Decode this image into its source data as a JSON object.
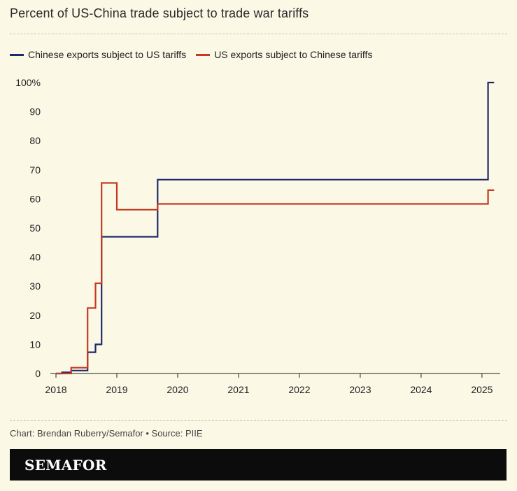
{
  "title": "Percent of US-China trade subject to trade war tariffs",
  "credit": "Chart: Brendan Ruberry/Semafor • Source: PIIE",
  "brand": {
    "logo_text": "SEMAFOR"
  },
  "colors": {
    "background": "#fbf8e6",
    "us_tariffs": "#1f2a6b",
    "china_tariffs": "#c53a25"
  },
  "chart_data": {
    "type": "line",
    "step": true,
    "xlim": [
      2018.0,
      2025.3
    ],
    "ylim": [
      0,
      100
    ],
    "x_ticks": [
      2018,
      2019,
      2020,
      2021,
      2022,
      2023,
      2024,
      2025
    ],
    "x_tick_labels": [
      "2018",
      "2019",
      "2020",
      "2021",
      "2022",
      "2023",
      "2024",
      "2025"
    ],
    "y_ticks": [
      0,
      10,
      20,
      30,
      40,
      50,
      60,
      70,
      80,
      90,
      100
    ],
    "y_tick_labels": [
      "0",
      "10",
      "20",
      "30",
      "40",
      "50",
      "60",
      "70",
      "80",
      "90",
      "100%"
    ],
    "grid": false,
    "legend_position": "top-left",
    "series": [
      {
        "name": "Chinese exports subject to US tariffs",
        "color": "#1f2a6b",
        "points": [
          [
            2018.0,
            0
          ],
          [
            2018.1,
            0.4
          ],
          [
            2018.25,
            1
          ],
          [
            2018.52,
            7.3
          ],
          [
            2018.65,
            10
          ],
          [
            2018.75,
            47
          ],
          [
            2019.67,
            66.6
          ],
          [
            2025.1,
            100
          ],
          [
            2025.2,
            100
          ]
        ]
      },
      {
        "name": "US exports subject to Chinese tariffs",
        "color": "#c53a25",
        "points": [
          [
            2018.0,
            0
          ],
          [
            2018.25,
            2
          ],
          [
            2018.52,
            22.5
          ],
          [
            2018.65,
            31
          ],
          [
            2018.75,
            65.5
          ],
          [
            2019.0,
            56.3
          ],
          [
            2019.67,
            58.3
          ],
          [
            2025.1,
            63
          ],
          [
            2025.2,
            63
          ]
        ]
      }
    ]
  }
}
